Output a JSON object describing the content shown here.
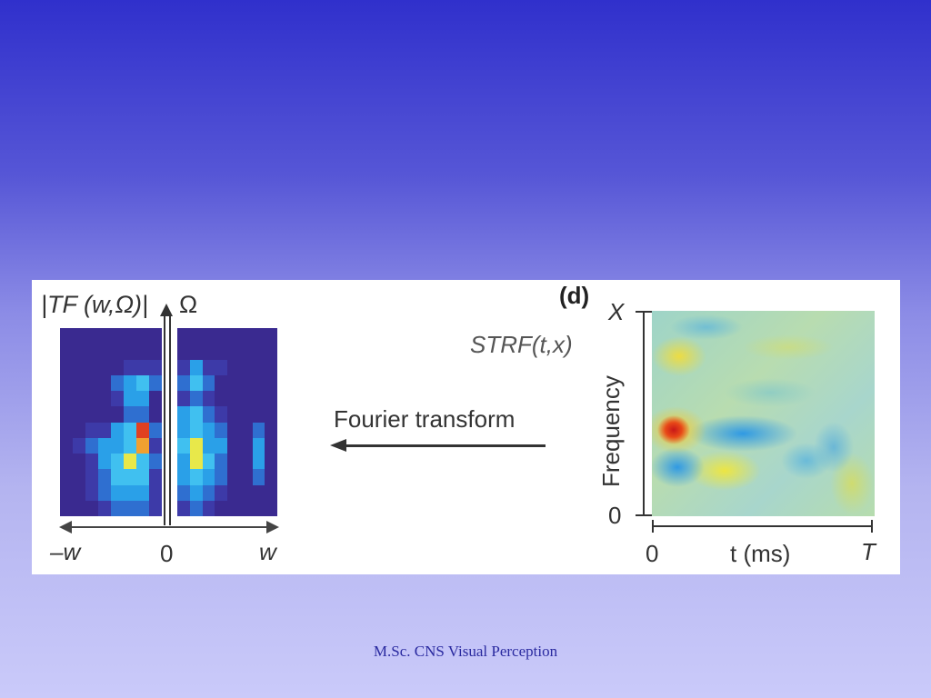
{
  "left_plot": {
    "title": "|TF (w,Ω)|",
    "y_axis_label": "Ω",
    "x_tick_left": "–w",
    "x_tick_center": "0",
    "x_tick_right": "w"
  },
  "arrow": {
    "label": "Fourier transform"
  },
  "right_plot": {
    "panel_label": "(d)",
    "title": "STRF(t,x)",
    "y_axis_label": "Frequency",
    "y_tick_top": "X",
    "y_tick_bottom": "0",
    "x_axis_label": "t (ms)",
    "x_tick_left": "0",
    "x_tick_right": "T"
  },
  "footer": "M.Sc. CNS Visual Perception"
}
